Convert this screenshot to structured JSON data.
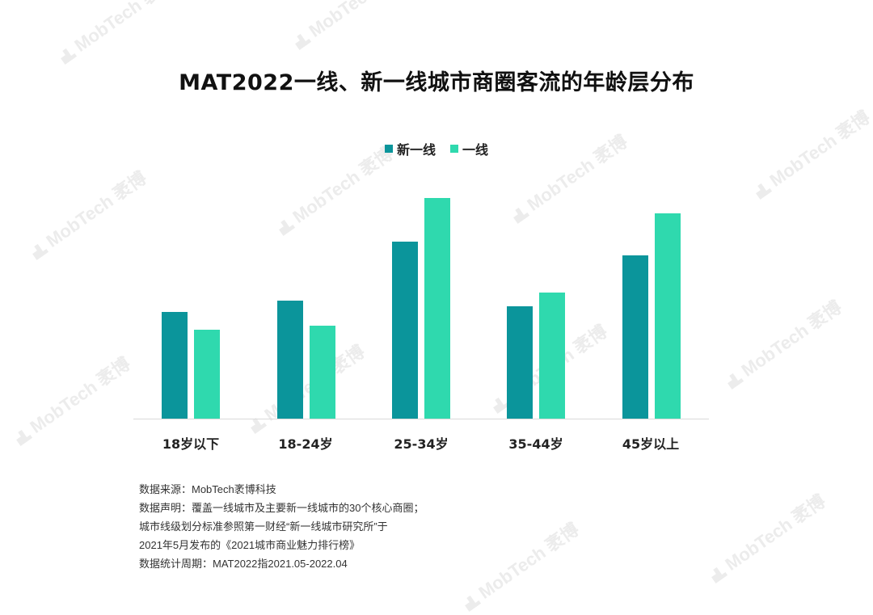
{
  "title": "MAT2022一线、新一线城市商圈客流的年龄层分布",
  "legend": [
    {
      "label": "新一线",
      "color": "#0b959b"
    },
    {
      "label": "一线",
      "color": "#2fd9ae"
    }
  ],
  "chart_data": {
    "type": "bar",
    "title": "MAT2022一线、新一线城市商圈客流的年龄层分布",
    "xlabel": "",
    "ylabel": "",
    "categories": [
      "18岁以下",
      "18-24岁",
      "25-34岁",
      "35-44岁",
      "45岁以上"
    ],
    "series": [
      {
        "name": "新一线",
        "color": "#0b959b",
        "values": [
          132,
          146,
          219,
          139,
          202
        ]
      },
      {
        "name": "一线",
        "color": "#2fd9ae",
        "values": [
          110,
          115,
          273,
          156,
          254
        ]
      }
    ],
    "value_note": "No y-axis shown; values are relative bar heights (px above baseline)",
    "ylim": [
      0,
      280
    ],
    "grid": false,
    "legend_position": "top"
  },
  "x_labels": [
    "18岁以下",
    "18-24岁",
    "25-34岁",
    "35-44岁",
    "45岁以上"
  ],
  "notes": [
    "数据来源：MobTech袤博科技",
    "数据声明：覆盖一线城市及主要新一线城市的30个核心商圈；",
    "城市线级划分标准参照第一财经“新一线城市研究所”于",
    "2021年5月发布的《2021城市商业魅力排行榜》",
    "数据统计周期：MAT2022指2021.05-2022.04"
  ],
  "watermark": "MobTech 袤博"
}
